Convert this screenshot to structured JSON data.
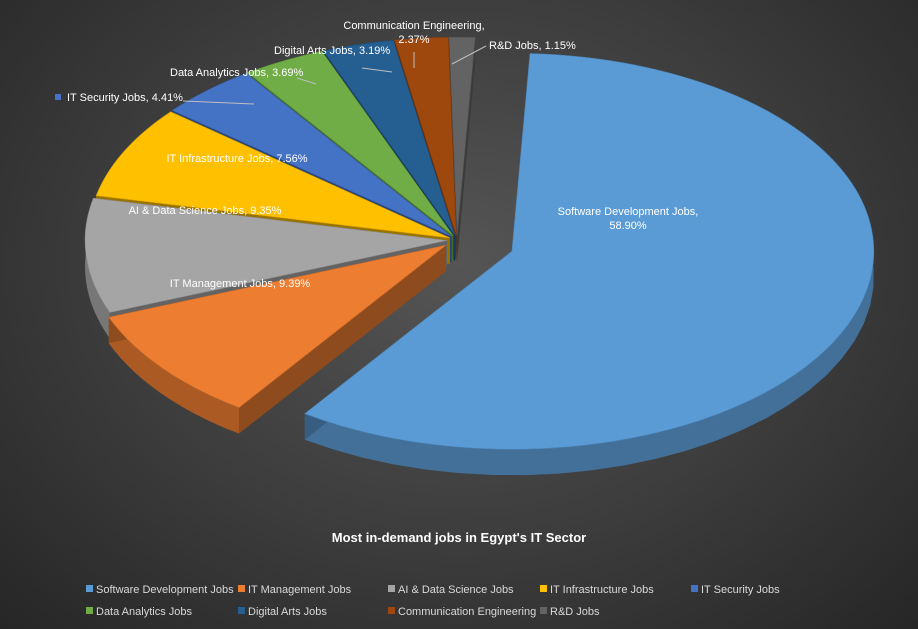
{
  "chart_data": {
    "type": "pie",
    "title": "Most in-demand jobs in Egypt's IT Sector",
    "legend_position": "bottom",
    "slices": [
      {
        "name": "Software Development Jobs",
        "value": 58.9,
        "label_line1": "Software Development Jobs,",
        "label_line2": "58.90%",
        "color": "#5b9bd5"
      },
      {
        "name": "IT Management Jobs",
        "value": 9.39,
        "label_line1": "IT Management Jobs, 9.39%",
        "label_line2": "",
        "color": "#ed7d31"
      },
      {
        "name": "AI & Data Science Jobs",
        "value": 9.35,
        "label_line1": "AI & Data Science Jobs, 9.35%",
        "label_line2": "",
        "color": "#a5a5a5"
      },
      {
        "name": "IT Infrastructure Jobs",
        "value": 7.56,
        "label_line1": "IT Infrastructure Jobs, 7.56%",
        "label_line2": "",
        "color": "#ffc000"
      },
      {
        "name": "IT Security Jobs",
        "value": 4.41,
        "label_line1": "IT Security Jobs, 4.41%",
        "label_line2": "",
        "color": "#4472c4"
      },
      {
        "name": "Data Analytics Jobs",
        "value": 3.69,
        "label_line1": "Data Analytics Jobs, 3.69%",
        "label_line2": "",
        "color": "#70ad47"
      },
      {
        "name": "Digital Arts Jobs",
        "value": 3.19,
        "label_line1": "Digital Arts Jobs, 3.19%",
        "label_line2": "",
        "color": "#255e91"
      },
      {
        "name": "Communication Engineering",
        "value": 2.37,
        "label_line1": "Communication Engineering,",
        "label_line2": "2.37%",
        "color": "#9e480e"
      },
      {
        "name": "R&D Jobs",
        "value": 1.15,
        "label_line1": "R&D Jobs, 1.15%",
        "label_line2": "",
        "color": "#636363"
      }
    ]
  }
}
